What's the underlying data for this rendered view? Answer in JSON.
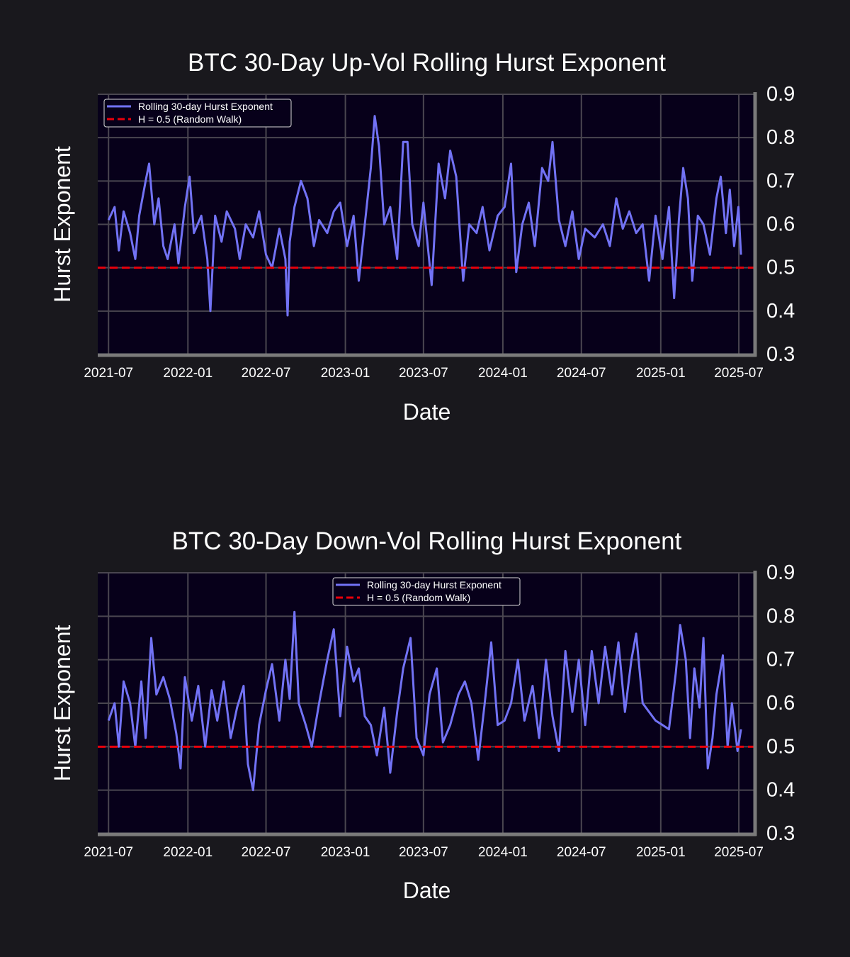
{
  "chart_data": [
    {
      "type": "line",
      "title": "BTC 30-Day Up-Vol Rolling Hurst Exponent",
      "xlabel": "Date",
      "ylabel": "Hurst Exponent",
      "x_tick_labels": [
        "2021-07",
        "2022-01",
        "2022-07",
        "2023-01",
        "2023-07",
        "2024-01",
        "2024-07",
        "2025-01",
        "2025-07"
      ],
      "y_ticks": [
        "0.3",
        "0.4",
        "0.5",
        "0.6",
        "0.7",
        "0.8",
        "0.9"
      ],
      "ylim": [
        0.3,
        0.9
      ],
      "xlim": [
        "2021-06-06",
        "2025-08-06"
      ],
      "grid": true,
      "legend_position": "upper-left",
      "series": [
        {
          "name": "Rolling 30-day Hurst Exponent",
          "color": "#7272f5",
          "points": [
            [
              "2021-07-01",
              0.61
            ],
            [
              "2021-07-15",
              0.64
            ],
            [
              "2021-07-25",
              0.54
            ],
            [
              "2021-08-05",
              0.63
            ],
            [
              "2021-08-20",
              0.58
            ],
            [
              "2021-09-01",
              0.52
            ],
            [
              "2021-09-10",
              0.62
            ],
            [
              "2021-09-25",
              0.7
            ],
            [
              "2021-10-03",
              0.74
            ],
            [
              "2021-10-15",
              0.6
            ],
            [
              "2021-10-25",
              0.66
            ],
            [
              "2021-11-05",
              0.55
            ],
            [
              "2021-11-15",
              0.52
            ],
            [
              "2021-12-01",
              0.6
            ],
            [
              "2021-12-10",
              0.51
            ],
            [
              "2021-12-25",
              0.64
            ],
            [
              "2022-01-05",
              0.71
            ],
            [
              "2022-01-15",
              0.58
            ],
            [
              "2022-02-01",
              0.62
            ],
            [
              "2022-02-15",
              0.52
            ],
            [
              "2022-02-22",
              0.4
            ],
            [
              "2022-03-05",
              0.62
            ],
            [
              "2022-03-20",
              0.56
            ],
            [
              "2022-04-01",
              0.63
            ],
            [
              "2022-04-20",
              0.59
            ],
            [
              "2022-05-01",
              0.52
            ],
            [
              "2022-05-15",
              0.6
            ],
            [
              "2022-06-01",
              0.57
            ],
            [
              "2022-06-15",
              0.63
            ],
            [
              "2022-07-01",
              0.53
            ],
            [
              "2022-07-15",
              0.5
            ],
            [
              "2022-08-01",
              0.59
            ],
            [
              "2022-08-15",
              0.52
            ],
            [
              "2022-08-20",
              0.39
            ],
            [
              "2022-08-25",
              0.56
            ],
            [
              "2022-09-05",
              0.64
            ],
            [
              "2022-09-20",
              0.7
            ],
            [
              "2022-10-05",
              0.66
            ],
            [
              "2022-10-20",
              0.55
            ],
            [
              "2022-11-01",
              0.61
            ],
            [
              "2022-11-20",
              0.58
            ],
            [
              "2022-12-05",
              0.63
            ],
            [
              "2022-12-20",
              0.65
            ],
            [
              "2023-01-05",
              0.55
            ],
            [
              "2023-01-20",
              0.62
            ],
            [
              "2023-02-01",
              0.47
            ],
            [
              "2023-02-15",
              0.6
            ],
            [
              "2023-03-01",
              0.73
            ],
            [
              "2023-03-10",
              0.85
            ],
            [
              "2023-03-20",
              0.78
            ],
            [
              "2023-04-01",
              0.6
            ],
            [
              "2023-04-15",
              0.64
            ],
            [
              "2023-05-01",
              0.52
            ],
            [
              "2023-05-15",
              0.79
            ],
            [
              "2023-05-25",
              0.79
            ],
            [
              "2023-06-05",
              0.6
            ],
            [
              "2023-06-20",
              0.55
            ],
            [
              "2023-07-01",
              0.65
            ],
            [
              "2023-07-20",
              0.46
            ],
            [
              "2023-08-05",
              0.74
            ],
            [
              "2023-08-20",
              0.66
            ],
            [
              "2023-09-01",
              0.77
            ],
            [
              "2023-09-15",
              0.71
            ],
            [
              "2023-10-01",
              0.47
            ],
            [
              "2023-10-15",
              0.6
            ],
            [
              "2023-11-01",
              0.58
            ],
            [
              "2023-11-15",
              0.64
            ],
            [
              "2023-12-01",
              0.54
            ],
            [
              "2023-12-20",
              0.62
            ],
            [
              "2024-01-05",
              0.64
            ],
            [
              "2024-01-20",
              0.74
            ],
            [
              "2024-02-01",
              0.49
            ],
            [
              "2024-02-15",
              0.6
            ],
            [
              "2024-03-01",
              0.65
            ],
            [
              "2024-03-15",
              0.55
            ],
            [
              "2024-04-01",
              0.73
            ],
            [
              "2024-04-15",
              0.7
            ],
            [
              "2024-04-25",
              0.79
            ],
            [
              "2024-05-10",
              0.61
            ],
            [
              "2024-05-25",
              0.55
            ],
            [
              "2024-06-10",
              0.63
            ],
            [
              "2024-06-25",
              0.52
            ],
            [
              "2024-07-10",
              0.59
            ],
            [
              "2024-08-01",
              0.57
            ],
            [
              "2024-08-20",
              0.6
            ],
            [
              "2024-09-05",
              0.55
            ],
            [
              "2024-09-20",
              0.66
            ],
            [
              "2024-10-05",
              0.59
            ],
            [
              "2024-10-20",
              0.63
            ],
            [
              "2024-11-05",
              0.58
            ],
            [
              "2024-11-20",
              0.6
            ],
            [
              "2024-12-05",
              0.47
            ],
            [
              "2024-12-20",
              0.62
            ],
            [
              "2025-01-05",
              0.52
            ],
            [
              "2025-01-20",
              0.64
            ],
            [
              "2025-02-01",
              0.43
            ],
            [
              "2025-02-12",
              0.61
            ],
            [
              "2025-02-22",
              0.73
            ],
            [
              "2025-03-05",
              0.66
            ],
            [
              "2025-03-15",
              0.47
            ],
            [
              "2025-03-28",
              0.62
            ],
            [
              "2025-04-10",
              0.6
            ],
            [
              "2025-04-25",
              0.53
            ],
            [
              "2025-05-10",
              0.66
            ],
            [
              "2025-05-20",
              0.71
            ],
            [
              "2025-06-01",
              0.58
            ],
            [
              "2025-06-10",
              0.68
            ],
            [
              "2025-06-20",
              0.55
            ],
            [
              "2025-06-30",
              0.64
            ],
            [
              "2025-07-06",
              0.53
            ]
          ]
        },
        {
          "name": "H = 0.5 (Random Walk)",
          "color": "#e8000b",
          "style": "dashed",
          "value": 0.5
        }
      ]
    },
    {
      "type": "line",
      "title": "BTC 30-Day Down-Vol Rolling Hurst Exponent",
      "xlabel": "Date",
      "ylabel": "Hurst Exponent",
      "x_tick_labels": [
        "2021-07",
        "2022-01",
        "2022-07",
        "2023-01",
        "2023-07",
        "2024-01",
        "2024-07",
        "2025-01",
        "2025-07"
      ],
      "y_ticks": [
        "0.3",
        "0.4",
        "0.5",
        "0.6",
        "0.7",
        "0.8",
        "0.9"
      ],
      "ylim": [
        0.3,
        0.9
      ],
      "xlim": [
        "2021-06-06",
        "2025-08-06"
      ],
      "grid": true,
      "legend_position": "upper-center",
      "series": [
        {
          "name": "Rolling 30-day Hurst Exponent",
          "color": "#7272f5",
          "points": [
            [
              "2021-07-01",
              0.56
            ],
            [
              "2021-07-15",
              0.6
            ],
            [
              "2021-07-25",
              0.5
            ],
            [
              "2021-08-05",
              0.65
            ],
            [
              "2021-08-20",
              0.6
            ],
            [
              "2021-09-01",
              0.5
            ],
            [
              "2021-09-15",
              0.65
            ],
            [
              "2021-09-25",
              0.52
            ],
            [
              "2021-10-08",
              0.75
            ],
            [
              "2021-10-20",
              0.62
            ],
            [
              "2021-11-05",
              0.66
            ],
            [
              "2021-11-20",
              0.61
            ],
            [
              "2021-12-05",
              0.53
            ],
            [
              "2021-12-15",
              0.45
            ],
            [
              "2021-12-25",
              0.66
            ],
            [
              "2022-01-10",
              0.56
            ],
            [
              "2022-01-25",
              0.64
            ],
            [
              "2022-02-10",
              0.5
            ],
            [
              "2022-02-25",
              0.63
            ],
            [
              "2022-03-10",
              0.56
            ],
            [
              "2022-03-25",
              0.65
            ],
            [
              "2022-04-10",
              0.52
            ],
            [
              "2022-04-25",
              0.59
            ],
            [
              "2022-05-10",
              0.64
            ],
            [
              "2022-05-20",
              0.46
            ],
            [
              "2022-06-01",
              0.4
            ],
            [
              "2022-06-15",
              0.55
            ],
            [
              "2022-07-01",
              0.63
            ],
            [
              "2022-07-15",
              0.69
            ],
            [
              "2022-08-01",
              0.56
            ],
            [
              "2022-08-15",
              0.7
            ],
            [
              "2022-08-25",
              0.61
            ],
            [
              "2022-09-05",
              0.81
            ],
            [
              "2022-09-15",
              0.6
            ],
            [
              "2022-10-01",
              0.55
            ],
            [
              "2022-10-15",
              0.5
            ],
            [
              "2022-11-01",
              0.6
            ],
            [
              "2022-11-20",
              0.7
            ],
            [
              "2022-12-05",
              0.77
            ],
            [
              "2022-12-20",
              0.57
            ],
            [
              "2023-01-05",
              0.73
            ],
            [
              "2023-01-20",
              0.65
            ],
            [
              "2023-02-01",
              0.68
            ],
            [
              "2023-02-15",
              0.57
            ],
            [
              "2023-03-01",
              0.55
            ],
            [
              "2023-03-15",
              0.48
            ],
            [
              "2023-04-01",
              0.59
            ],
            [
              "2023-04-15",
              0.44
            ],
            [
              "2023-05-01",
              0.58
            ],
            [
              "2023-05-15",
              0.68
            ],
            [
              "2023-06-01",
              0.75
            ],
            [
              "2023-06-15",
              0.52
            ],
            [
              "2023-07-01",
              0.48
            ],
            [
              "2023-07-15",
              0.62
            ],
            [
              "2023-08-01",
              0.68
            ],
            [
              "2023-08-15",
              0.51
            ],
            [
              "2023-09-01",
              0.55
            ],
            [
              "2023-09-20",
              0.62
            ],
            [
              "2023-10-05",
              0.65
            ],
            [
              "2023-10-20",
              0.6
            ],
            [
              "2023-11-05",
              0.47
            ],
            [
              "2023-11-20",
              0.6
            ],
            [
              "2023-12-05",
              0.74
            ],
            [
              "2023-12-20",
              0.55
            ],
            [
              "2024-01-05",
              0.56
            ],
            [
              "2024-01-20",
              0.6
            ],
            [
              "2024-02-05",
              0.7
            ],
            [
              "2024-02-20",
              0.56
            ],
            [
              "2024-03-10",
              0.64
            ],
            [
              "2024-03-25",
              0.52
            ],
            [
              "2024-04-10",
              0.7
            ],
            [
              "2024-04-25",
              0.57
            ],
            [
              "2024-05-10",
              0.49
            ],
            [
              "2024-05-25",
              0.72
            ],
            [
              "2024-06-10",
              0.58
            ],
            [
              "2024-06-25",
              0.7
            ],
            [
              "2024-07-10",
              0.55
            ],
            [
              "2024-07-25",
              0.72
            ],
            [
              "2024-08-10",
              0.6
            ],
            [
              "2024-08-25",
              0.73
            ],
            [
              "2024-09-10",
              0.62
            ],
            [
              "2024-09-25",
              0.74
            ],
            [
              "2024-10-10",
              0.58
            ],
            [
              "2024-10-25",
              0.7
            ],
            [
              "2024-11-05",
              0.76
            ],
            [
              "2024-11-20",
              0.6
            ],
            [
              "2024-12-05",
              0.58
            ],
            [
              "2024-12-20",
              0.56
            ],
            [
              "2025-01-05",
              0.55
            ],
            [
              "2025-01-20",
              0.54
            ],
            [
              "2025-02-05",
              0.67
            ],
            [
              "2025-02-15",
              0.78
            ],
            [
              "2025-02-28",
              0.7
            ],
            [
              "2025-03-10",
              0.52
            ],
            [
              "2025-03-20",
              0.68
            ],
            [
              "2025-04-01",
              0.59
            ],
            [
              "2025-04-10",
              0.75
            ],
            [
              "2025-04-20",
              0.45
            ],
            [
              "2025-05-01",
              0.52
            ],
            [
              "2025-05-10",
              0.62
            ],
            [
              "2025-05-25",
              0.71
            ],
            [
              "2025-06-05",
              0.5
            ],
            [
              "2025-06-15",
              0.6
            ],
            [
              "2025-06-28",
              0.49
            ],
            [
              "2025-07-06",
              0.54
            ]
          ]
        },
        {
          "name": "H = 0.5 (Random Walk)",
          "color": "#e8000b",
          "style": "dashed",
          "value": 0.5
        }
      ]
    }
  ]
}
